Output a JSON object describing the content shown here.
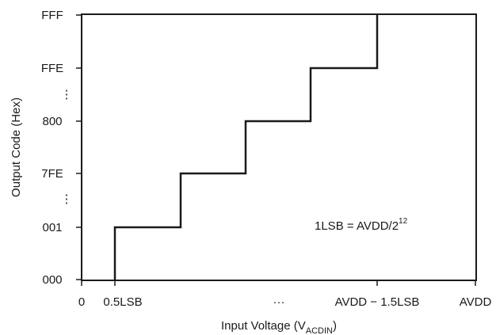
{
  "chart_data": {
    "type": "line",
    "step": "staircase",
    "xlabel": "Input Voltage (V",
    "xlabel_sub": "ACDIN",
    "xlabel_close": ")",
    "ylabel": "Output Code (Hex)",
    "x_ticks": [
      "0",
      "0.5LSB",
      "AVDD − 1.5LSB",
      "AVDD"
    ],
    "x_ellipsis": "···",
    "y_ticks": [
      "000",
      "001",
      "7FE",
      "800",
      "FFE",
      "FFF"
    ],
    "y_ellipsis": [
      "⋮",
      "⋮"
    ],
    "annotation": "1LSB = AVDD/2",
    "annotation_sup": "12",
    "x": [
      0.5,
      1.5,
      2.5,
      3.5,
      4.5
    ],
    "y": [
      "001",
      "7FE",
      "800",
      "FFE",
      "FFF"
    ],
    "xlim": [
      0,
      5.5
    ],
    "grid": false,
    "colors": {
      "line": "#1a1a1a",
      "frame": "#1a1a1a"
    }
  }
}
